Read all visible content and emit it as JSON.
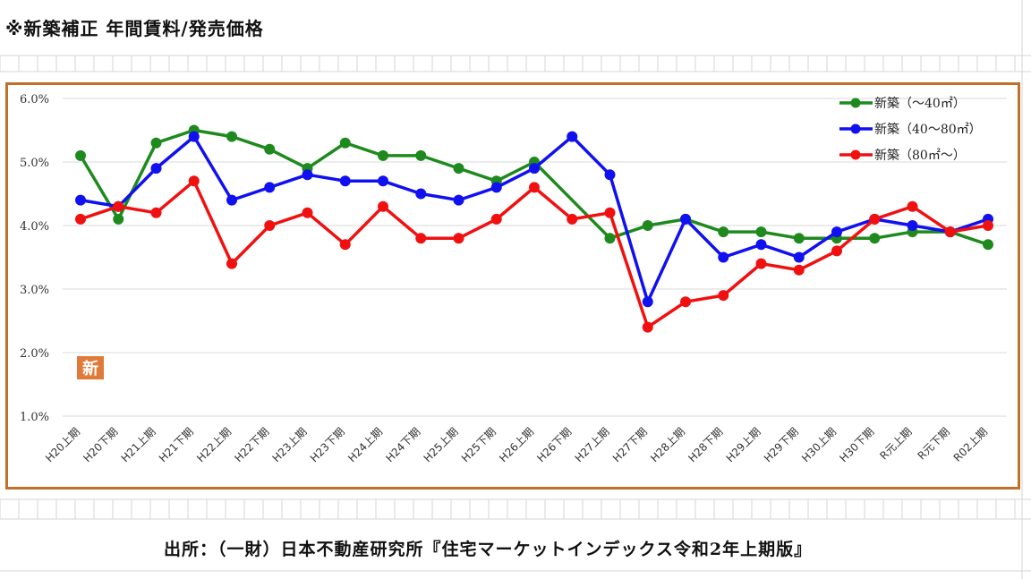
{
  "page": {
    "title": "※新築補正 年間賃料/発売価格",
    "source": "出所：（一財）日本不動産研究所『住宅マーケットインデックス令和2年上期版』",
    "badge": "新"
  },
  "chart_data": {
    "type": "line",
    "title": "",
    "xlabel": "",
    "ylabel": "",
    "ylim": [
      1.0,
      6.0
    ],
    "yticks": [
      "1.0%",
      "2.0%",
      "3.0%",
      "4.0%",
      "5.0%",
      "6.0%"
    ],
    "legend_position": "top-right",
    "grid": true,
    "categories": [
      "H20上期",
      "H20下期",
      "H21上期",
      "H21下期",
      "H22上期",
      "H22下期",
      "H23上期",
      "H23下期",
      "H24上期",
      "H24下期",
      "H25上期",
      "H25下期",
      "H26上期",
      "H26下期",
      "H27上期",
      "H27下期",
      "H28上期",
      "H28下期",
      "H29上期",
      "H29下期",
      "H30上期",
      "H30下期",
      "R元上期",
      "R元下期",
      "R02上期"
    ],
    "series": [
      {
        "name": "新築（～40㎡）",
        "color": "#1e8a1e",
        "values": [
          5.1,
          4.1,
          5.3,
          5.5,
          5.4,
          5.2,
          4.9,
          5.3,
          5.1,
          5.1,
          4.9,
          4.7,
          5.0,
          null,
          3.8,
          4.0,
          4.1,
          3.9,
          3.9,
          3.8,
          3.8,
          3.8,
          3.9,
          3.9,
          3.7
        ]
      },
      {
        "name": "新築（40～80㎡）",
        "color": "#1010f0",
        "values": [
          4.4,
          4.3,
          4.9,
          5.4,
          4.4,
          4.6,
          4.8,
          4.7,
          4.7,
          4.5,
          4.4,
          4.6,
          4.9,
          5.4,
          4.8,
          2.8,
          4.1,
          3.5,
          3.7,
          3.5,
          3.9,
          4.1,
          4.0,
          3.9,
          4.1
        ]
      },
      {
        "name": "新築（80㎡～）",
        "color": "#f01010",
        "values": [
          4.1,
          4.3,
          4.2,
          4.7,
          3.4,
          4.0,
          4.2,
          3.7,
          4.3,
          3.8,
          3.8,
          4.1,
          4.6,
          4.1,
          4.2,
          2.4,
          2.8,
          2.9,
          3.4,
          3.3,
          3.6,
          4.1,
          4.3,
          3.9,
          4.0
        ]
      }
    ]
  }
}
